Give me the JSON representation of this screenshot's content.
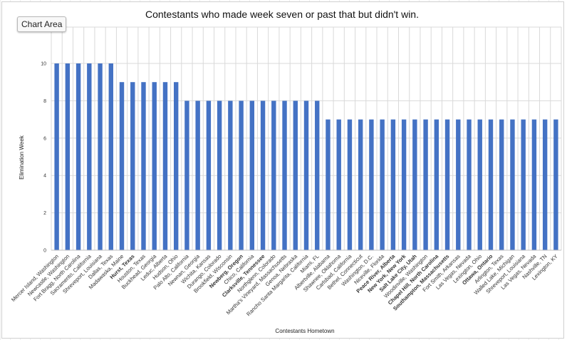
{
  "ui": {
    "chart_area_tooltip": "Chart Area",
    "colors": {
      "bar": "#4472C4",
      "gridline": "#d9d9d9",
      "axis": "#bfbfbf"
    }
  },
  "chart_data": {
    "type": "bar",
    "title": "Contestants who made  week seven or past that but didn't win.",
    "xlabel": "Contestants Hometown",
    "ylabel": "Elimination Week",
    "ylim": [
      0,
      10
    ],
    "yticks": [
      0,
      2,
      4,
      6,
      8,
      10
    ],
    "grid": true,
    "legend": "none",
    "categories": [
      "Mercer Island, Washington",
      "Newcastle, Washington",
      "Fort Bragg, North Carolina",
      "Sacramento, California",
      "Shreveport, Louisiana",
      "Dallas, Texas",
      "Madawaska, Maine",
      "Hurst, Texas",
      "Houston, Texas",
      "Buckhead, Georgia",
      "Leduc, Alberta",
      "Hudson, Ohio",
      "Palo Alto, California",
      "Newnan, Georgia",
      "Wichita, Kansas",
      "Durango, Colorado",
      "Brookfield, Wisconsin",
      "Newberg, Oregon",
      "Chico, California",
      "Clarksville, Tennessee",
      "Northglenn, Colorado",
      "Martha's Vineyard, Massachusetts",
      "Genoa, Nebraska",
      "Rancho Santa Margarita, California",
      "Miami, FL",
      "Albertville, Alabama",
      "Shawnee, Oklahoma",
      "Carlsbad, California",
      "Bethel, Connecticut",
      "Washington, D.C.",
      "Niceville, Florida",
      "Peace River, Alberta",
      "New York, New York",
      "Salt Lake City, Utah",
      "Woodinville, Washington",
      "Chapel Hill, North Carolina",
      "Southampton, Massachusetts",
      "Fort Smith, Arkansas",
      "Las Vegas, Nevada",
      "Lexington, Ohio",
      "Ottawa, Ontario",
      "Arlington, Texas",
      "Walled Lake, Michigan",
      "Shreveport, Louisiana",
      "Las Vegas, Nevada",
      "Nashville, TN",
      "Lexington, KY"
    ],
    "values": [
      10,
      10,
      10,
      10,
      10,
      10,
      9,
      9,
      9,
      9,
      9,
      9,
      8,
      8,
      8,
      8,
      8,
      8,
      8,
      8,
      8,
      8,
      8,
      8,
      8,
      7,
      7,
      7,
      7,
      7,
      7,
      7,
      7,
      7,
      7,
      7,
      7,
      7,
      7,
      7,
      7,
      7,
      7,
      7,
      7,
      7,
      7
    ],
    "bold_labels": [
      7,
      17,
      19,
      31,
      32,
      33,
      35,
      36,
      40
    ]
  }
}
